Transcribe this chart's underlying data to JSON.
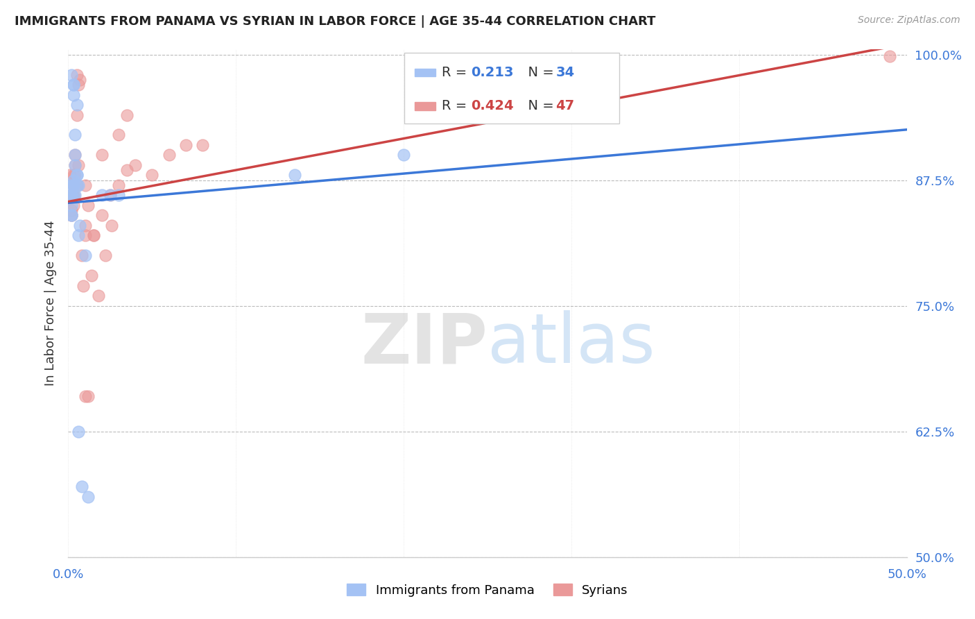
{
  "title": "IMMIGRANTS FROM PANAMA VS SYRIAN IN LABOR FORCE | AGE 35-44 CORRELATION CHART",
  "source": "Source: ZipAtlas.com",
  "ylabel": "In Labor Force | Age 35-44",
  "xlim": [
    0.0,
    0.5
  ],
  "ylim": [
    0.5,
    1.005
  ],
  "yticks": [
    0.5,
    0.625,
    0.75,
    0.875,
    1.0
  ],
  "ytick_labels": [
    "50.0%",
    "62.5%",
    "75.0%",
    "87.5%",
    "100.0%"
  ],
  "xticks": [
    0.0,
    0.05,
    0.1,
    0.15,
    0.2,
    0.25,
    0.3,
    0.35,
    0.4,
    0.45,
    0.5
  ],
  "xtick_labels": [
    "0.0%",
    "",
    "",
    "",
    "",
    "",
    "",
    "",
    "",
    "",
    "50.0%"
  ],
  "panama_color": "#a4c2f4",
  "syrian_color": "#ea9999",
  "panama_line_color": "#3c78d8",
  "syrian_line_color": "#cc4444",
  "r_panama": 0.213,
  "n_panama": 34,
  "r_syrian": 0.424,
  "n_syrian": 47,
  "legend_panama": "Immigrants from Panama",
  "legend_syrian": "Syrians",
  "watermark_zip": "ZIP",
  "watermark_atlas": "atlas",
  "background_color": "#ffffff",
  "grid_color": "#bbbbbb",
  "title_color": "#222222",
  "axis_label_color": "#3c78d8",
  "panama_points_x": [
    0.001,
    0.002,
    0.002,
    0.002,
    0.002,
    0.003,
    0.003,
    0.003,
    0.003,
    0.004,
    0.004,
    0.005,
    0.005,
    0.005,
    0.006,
    0.006,
    0.007,
    0.002,
    0.002,
    0.003,
    0.003,
    0.003,
    0.004,
    0.004,
    0.005,
    0.02,
    0.025,
    0.03,
    0.135,
    0.2,
    0.006,
    0.008,
    0.012,
    0.01
  ],
  "panama_points_y": [
    0.87,
    0.86,
    0.84,
    0.84,
    0.85,
    0.875,
    0.87,
    0.87,
    0.86,
    0.86,
    0.92,
    0.88,
    0.87,
    0.95,
    0.87,
    0.82,
    0.83,
    0.86,
    0.98,
    0.97,
    0.97,
    0.96,
    0.9,
    0.89,
    0.88,
    0.86,
    0.86,
    0.86,
    0.88,
    0.9,
    0.625,
    0.57,
    0.56,
    0.8
  ],
  "syrian_points_x": [
    0.001,
    0.002,
    0.002,
    0.002,
    0.002,
    0.002,
    0.003,
    0.003,
    0.003,
    0.003,
    0.003,
    0.004,
    0.004,
    0.004,
    0.005,
    0.005,
    0.005,
    0.006,
    0.006,
    0.007,
    0.008,
    0.009,
    0.01,
    0.01,
    0.01,
    0.012,
    0.012,
    0.014,
    0.015,
    0.015,
    0.018,
    0.02,
    0.02,
    0.022,
    0.025,
    0.026,
    0.03,
    0.03,
    0.035,
    0.035,
    0.04,
    0.05,
    0.06,
    0.07,
    0.08,
    0.01,
    0.49
  ],
  "syrian_points_y": [
    0.88,
    0.86,
    0.86,
    0.84,
    0.845,
    0.84,
    0.87,
    0.86,
    0.88,
    0.86,
    0.85,
    0.89,
    0.88,
    0.9,
    0.87,
    0.94,
    0.98,
    0.89,
    0.97,
    0.975,
    0.8,
    0.77,
    0.87,
    0.83,
    0.66,
    0.85,
    0.66,
    0.78,
    0.82,
    0.82,
    0.76,
    0.84,
    0.9,
    0.8,
    0.86,
    0.83,
    0.87,
    0.92,
    0.885,
    0.94,
    0.89,
    0.88,
    0.9,
    0.91,
    0.91,
    0.82,
    0.998
  ]
}
